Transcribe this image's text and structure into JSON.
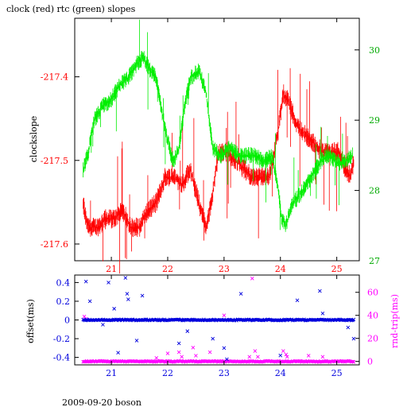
{
  "page": {
    "title": "clock (red) rtc (green) slopes",
    "footer": "2009-09-20 boson"
  },
  "colors": {
    "red": "#ff0000",
    "green": "#00ee00",
    "blue": "#0000dd",
    "magenta": "#ff00ff",
    "axis": "#000000"
  },
  "chart_data": [
    {
      "type": "line",
      "title": "clock (red) rtc (green) slopes",
      "ylabel": "clockslope",
      "x": {
        "range": [
          20.35,
          25.4
        ],
        "ticks": [
          "21",
          "22",
          "23",
          "24",
          "25"
        ]
      },
      "y_left": {
        "range": [
          -217.62,
          -217.33
        ],
        "ticks": [
          "-217.4",
          "-217.5",
          "-217.6"
        ]
      },
      "y_right": {
        "range": [
          27.0,
          30.45
        ],
        "ticks": [
          "27",
          "28",
          "29",
          "30"
        ]
      },
      "grid": false,
      "series": [
        {
          "name": "clock",
          "axis": "left",
          "color": "red",
          "points": [
            [
              20.5,
              -217.55
            ],
            [
              20.55,
              -217.57
            ],
            [
              20.62,
              -217.58
            ],
            [
              20.75,
              -217.58
            ],
            [
              20.9,
              -217.57
            ],
            [
              21.05,
              -217.57
            ],
            [
              21.2,
              -217.56
            ],
            [
              21.35,
              -217.58
            ],
            [
              21.5,
              -217.58
            ],
            [
              21.65,
              -217.56
            ],
            [
              21.8,
              -217.55
            ],
            [
              21.95,
              -217.52
            ],
            [
              22.1,
              -217.52
            ],
            [
              22.25,
              -217.53
            ],
            [
              22.4,
              -217.51
            ],
            [
              22.55,
              -217.55
            ],
            [
              22.68,
              -217.58
            ],
            [
              22.78,
              -217.55
            ],
            [
              22.9,
              -217.49
            ],
            [
              23.05,
              -217.49
            ],
            [
              23.2,
              -217.5
            ],
            [
              23.35,
              -217.51
            ],
            [
              23.5,
              -217.52
            ],
            [
              23.65,
              -217.52
            ],
            [
              23.8,
              -217.52
            ],
            [
              23.95,
              -217.47
            ],
            [
              24.05,
              -217.42
            ],
            [
              24.15,
              -217.43
            ],
            [
              24.3,
              -217.46
            ],
            [
              24.45,
              -217.47
            ],
            [
              24.6,
              -217.48
            ],
            [
              24.75,
              -217.49
            ],
            [
              24.9,
              -217.49
            ],
            [
              25.05,
              -217.49
            ],
            [
              25.15,
              -217.51
            ],
            [
              25.25,
              -217.52
            ],
            [
              25.3,
              -217.5
            ]
          ]
        },
        {
          "name": "rtc",
          "axis": "right",
          "color": "green",
          "points": [
            [
              20.5,
              28.3
            ],
            [
              20.58,
              28.5
            ],
            [
              20.7,
              29.0
            ],
            [
              20.85,
              29.2
            ],
            [
              21.0,
              29.3
            ],
            [
              21.15,
              29.5
            ],
            [
              21.3,
              29.6
            ],
            [
              21.45,
              29.8
            ],
            [
              21.58,
              29.9
            ],
            [
              21.68,
              29.7
            ],
            [
              21.8,
              29.6
            ],
            [
              21.9,
              29.1
            ],
            [
              22.0,
              28.7
            ],
            [
              22.1,
              28.4
            ],
            [
              22.2,
              28.6
            ],
            [
              22.3,
              29.2
            ],
            [
              22.4,
              29.6
            ],
            [
              22.55,
              29.7
            ],
            [
              22.68,
              29.4
            ],
            [
              22.8,
              28.6
            ],
            [
              22.95,
              28.5
            ],
            [
              23.1,
              28.6
            ],
            [
              23.25,
              28.5
            ],
            [
              23.4,
              28.5
            ],
            [
              23.55,
              28.5
            ],
            [
              23.7,
              28.4
            ],
            [
              23.85,
              28.5
            ],
            [
              23.95,
              28.1
            ],
            [
              24.02,
              27.6
            ],
            [
              24.1,
              27.5
            ],
            [
              24.2,
              27.8
            ],
            [
              24.3,
              27.9
            ],
            [
              24.4,
              28.0
            ],
            [
              24.55,
              28.2
            ],
            [
              24.7,
              28.4
            ],
            [
              24.85,
              28.5
            ],
            [
              25.0,
              28.4
            ],
            [
              25.15,
              28.4
            ],
            [
              25.28,
              28.5
            ]
          ]
        }
      ]
    },
    {
      "type": "scatter",
      "ylabel": "offset(ms)",
      "ylabel_right": "rnd-trip(ms)",
      "x": {
        "range": [
          20.35,
          25.4
        ],
        "ticks": [
          "21",
          "22",
          "23",
          "24",
          "25"
        ]
      },
      "y_left": {
        "range": [
          -0.48,
          0.48
        ],
        "ticks": [
          "0.4",
          "0.2",
          "0",
          "-0.2",
          "-0.4"
        ]
      },
      "y_right": {
        "range": [
          -3,
          75
        ],
        "ticks": [
          "60",
          "40",
          "20",
          "0"
        ]
      },
      "grid": false,
      "series": [
        {
          "name": "offset",
          "axis": "left",
          "color": "blue",
          "baseline": 0.0,
          "outliers": [
            [
              20.55,
              0.41
            ],
            [
              20.62,
              0.2
            ],
            [
              20.85,
              -0.05
            ],
            [
              20.95,
              0.4
            ],
            [
              21.05,
              0.12
            ],
            [
              21.12,
              -0.35
            ],
            [
              21.25,
              0.45
            ],
            [
              21.28,
              0.28
            ],
            [
              21.3,
              0.22
            ],
            [
              21.45,
              -0.22
            ],
            [
              21.55,
              0.26
            ],
            [
              22.2,
              -0.25
            ],
            [
              22.35,
              -0.12
            ],
            [
              22.8,
              -0.2
            ],
            [
              23.0,
              -0.3
            ],
            [
              23.05,
              -0.42
            ],
            [
              23.3,
              0.28
            ],
            [
              24.0,
              -0.38
            ],
            [
              24.3,
              0.21
            ],
            [
              24.7,
              0.31
            ],
            [
              24.75,
              0.07
            ],
            [
              25.2,
              -0.08
            ],
            [
              25.3,
              -0.2
            ]
          ]
        },
        {
          "name": "rnd-trip",
          "axis": "right",
          "color": "magenta",
          "baseline": 0.0,
          "outliers": [
            [
              20.52,
              39
            ],
            [
              20.55,
              37
            ],
            [
              21.8,
              3
            ],
            [
              22.0,
              7
            ],
            [
              22.2,
              8
            ],
            [
              22.25,
              4
            ],
            [
              22.45,
              12
            ],
            [
              22.5,
              5
            ],
            [
              22.75,
              8
            ],
            [
              23.0,
              40
            ],
            [
              23.45,
              4
            ],
            [
              23.5,
              72
            ],
            [
              23.55,
              9
            ],
            [
              23.6,
              4
            ],
            [
              24.05,
              9
            ],
            [
              24.1,
              6
            ],
            [
              24.12,
              4
            ],
            [
              24.5,
              5
            ],
            [
              24.75,
              4
            ]
          ]
        }
      ]
    }
  ]
}
